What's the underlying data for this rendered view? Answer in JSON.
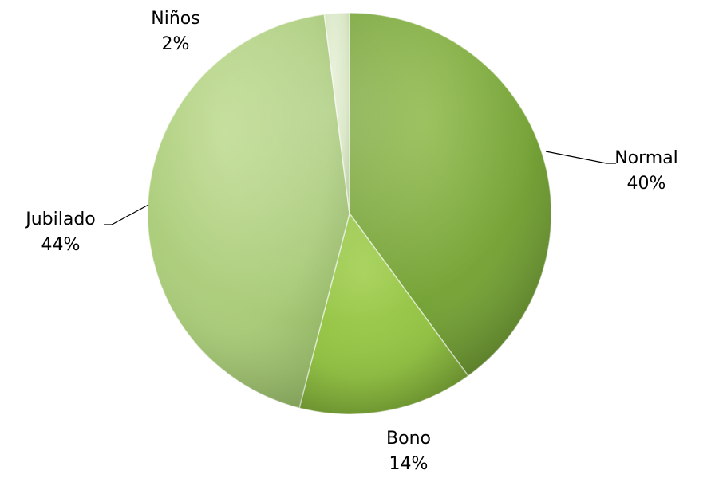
{
  "chart_data": {
    "type": "pie",
    "title": "",
    "legend": "none",
    "slices": [
      {
        "category": "Normal",
        "value": 40,
        "label_pct": "40%",
        "color": "#76a338",
        "highlight": "#8fba4b",
        "shadow": "#5a7f27"
      },
      {
        "category": "Bono",
        "value": 14,
        "label_pct": "14%",
        "color": "#8fc040",
        "highlight": "#a6d158",
        "shadow": "#6e9630"
      },
      {
        "category": "Jubilado",
        "value": 44,
        "label_pct": "44%",
        "color": "#a9cb78",
        "highlight": "#bfdb92",
        "shadow": "#87a95c"
      },
      {
        "category": "Niños",
        "value": 2,
        "label_pct": "2%",
        "color": "#d4e3bd",
        "highlight": "#e3eed3",
        "shadow": "#b6c99c"
      }
    ]
  }
}
